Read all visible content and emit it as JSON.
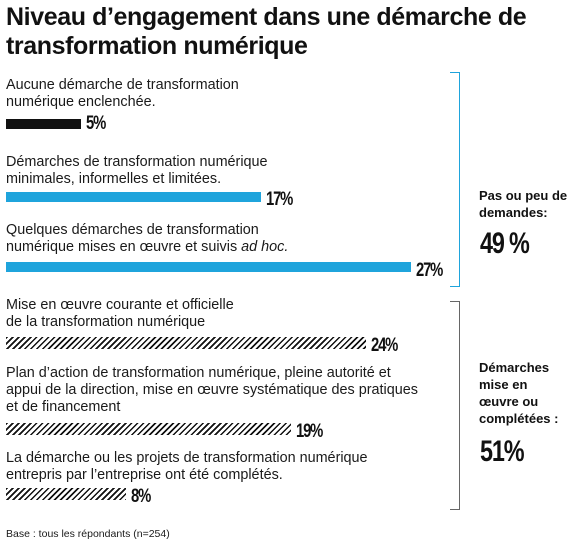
{
  "title": "Niveau d’engagement dans une démarche de transformation numérique",
  "chart_data": {
    "type": "bar",
    "orientation": "horizontal",
    "title": "Niveau d’engagement dans une démarche de transformation numérique",
    "unit": "%",
    "categories": [
      {
        "lines": [
          "Aucune démarche de transformation",
          "numérique enclenchée."
        ],
        "value": 5,
        "label": "5%",
        "style": "black"
      },
      {
        "lines": [
          "Démarches de transformation numérique",
          "minimales, informelles et limitées."
        ],
        "value": 17,
        "label": "17%",
        "style": "blue"
      },
      {
        "lines": [
          "Quelques démarches de transformation",
          "numérique mises en œuvre et suivis "
        ],
        "italic": "ad hoc.",
        "value": 27,
        "label": "27%",
        "style": "blue"
      },
      {
        "lines": [
          "Mise en œuvre courante et officielle",
          "de la transformation numérique"
        ],
        "value": 24,
        "label": "24%",
        "style": "hatch"
      },
      {
        "lines": [
          "Plan d’action de transformation numérique, pleine autorité et",
          "appui de la direction, mise en œuvre systématique des pratiques",
          "et de financement"
        ],
        "value": 19,
        "label": "19%",
        "style": "hatch"
      },
      {
        "lines": [
          "La démarche ou les projets de transformation numérique",
          "entrepris par l’entreprise ont été complétés."
        ],
        "value": 8,
        "label": "8%",
        "style": "hatch"
      }
    ],
    "groups": [
      {
        "label_lines": [
          "Pas ou peu de",
          "demandes:"
        ],
        "value": 49,
        "value_label": "49 %",
        "color": "#1fa4dc"
      },
      {
        "label_lines": [
          "Démarches",
          "mise en",
          "œuvre ou",
          "complétées :"
        ],
        "value": 51,
        "value_label": "51%",
        "color": "#666666"
      }
    ],
    "colors": {
      "blue": "#1fa4dc",
      "black": "#111111",
      "grey": "#666666"
    }
  },
  "footnote": "Base : tous les répondants (n=254)"
}
